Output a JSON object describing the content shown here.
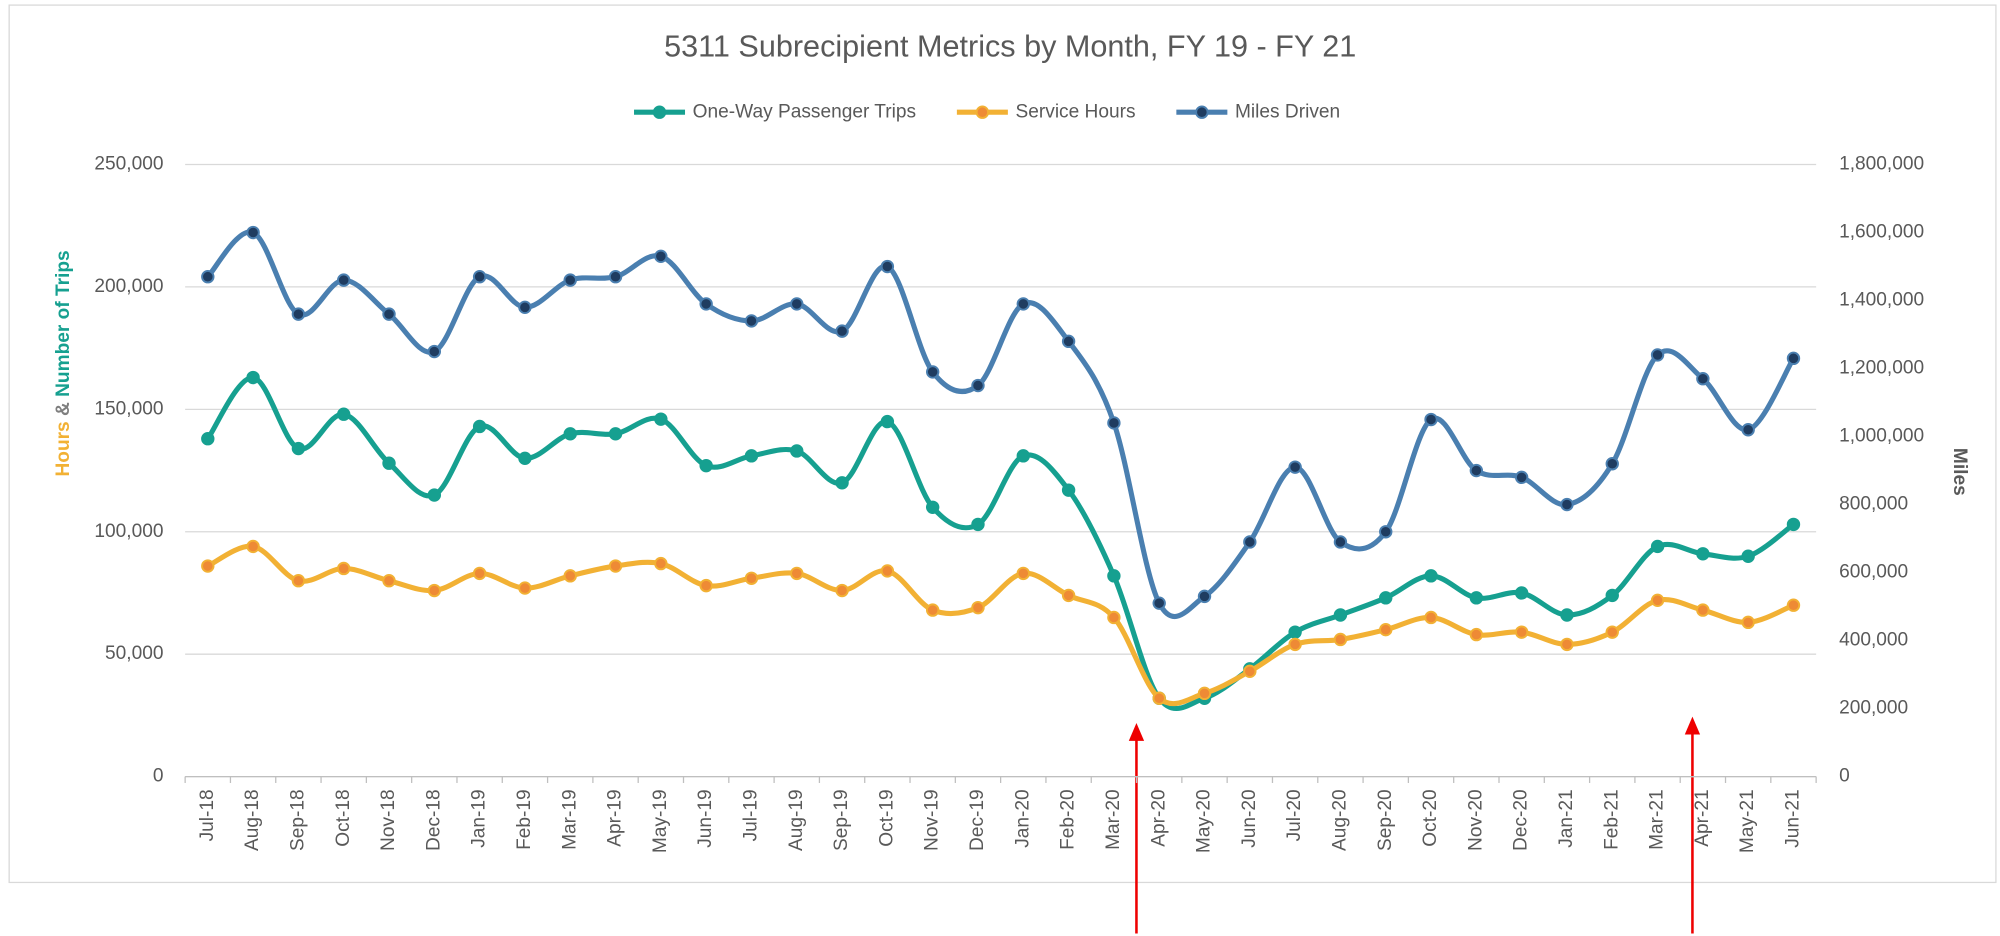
{
  "chart_data": {
    "type": "line",
    "title": "5311 Subrecipient Metrics by Month, FY 19 - FY 21",
    "ylabel_parts": [
      {
        "text": "Hours",
        "color": "#f2b134"
      },
      {
        "text": "&",
        "color": "#7f7f7f"
      },
      {
        "text": "Number of Trips",
        "color": "#16a090"
      }
    ],
    "y2label": "Miles",
    "y2label_color": "#2e6aa8",
    "categories": [
      "Jul-18",
      "Aug-18",
      "Sep-18",
      "Oct-18",
      "Nov-18",
      "Dec-18",
      "Jan-19",
      "Feb-19",
      "Mar-19",
      "Apr-19",
      "May-19",
      "Jun-19",
      "Jul-19",
      "Aug-19",
      "Sep-19",
      "Oct-19",
      "Nov-19",
      "Dec-19",
      "Jan-20",
      "Feb-20",
      "Mar-20",
      "Apr-20",
      "May-20",
      "Jun-20",
      "Jul-20",
      "Aug-20",
      "Sep-20",
      "Oct-20",
      "Nov-20",
      "Dec-20",
      "Jan-21",
      "Feb-21",
      "Mar-21",
      "Apr-21",
      "May-21",
      "Jun-21"
    ],
    "series": [
      {
        "name": "One-Way Passenger Trips",
        "color": "#16a090",
        "marker_color": "#16a090",
        "values": [
          138000,
          163000,
          134000,
          148000,
          128000,
          115000,
          143000,
          130000,
          140000,
          140000,
          146000,
          127000,
          131000,
          133000,
          120000,
          145000,
          110000,
          103000,
          131000,
          117000,
          82000,
          32000,
          32000,
          44000,
          59000,
          66000,
          73000,
          82000,
          73000,
          75000,
          66000,
          74000,
          94000,
          91000,
          90000,
          103000
        ]
      },
      {
        "name": "Service Hours",
        "color": "#f2b134",
        "marker_color": "#ee8a35",
        "values": [
          86000,
          94000,
          80000,
          85000,
          80000,
          76000,
          83000,
          77000,
          82000,
          86000,
          87000,
          78000,
          81000,
          83000,
          76000,
          84000,
          68000,
          69000,
          83000,
          74000,
          65000,
          32000,
          34000,
          43000,
          54000,
          56000,
          60000,
          65000,
          58000,
          59000,
          54000,
          59000,
          72000,
          68000,
          63000,
          70000
        ]
      },
      {
        "name": "Miles Driven",
        "color": "#4a7fb0",
        "marker_color": "#1f3c60",
        "axis": "y2",
        "values": [
          1470000,
          1600000,
          1360000,
          1460000,
          1360000,
          1250000,
          1470000,
          1380000,
          1460000,
          1470000,
          1530000,
          1390000,
          1340000,
          1390000,
          1310000,
          1500000,
          1190000,
          1150000,
          1390000,
          1280000,
          1040000,
          510000,
          530000,
          690000,
          910000,
          690000,
          720000,
          1050000,
          900000,
          880000,
          800000,
          920000,
          1240000,
          1170000,
          1020000,
          1230000
        ]
      }
    ],
    "ylim": [
      0,
      250000
    ],
    "yticks": [
      0,
      {
        "value": 50000,
        "label": "50,000"
      },
      {
        "value": 100000,
        "label": "100,000"
      },
      {
        "value": 150000,
        "label": "150,000"
      },
      {
        "value": 200000,
        "label": "200,000"
      },
      {
        "value": 250000,
        "label": "250,000"
      }
    ],
    "y2lim": [
      0,
      1800000
    ],
    "y2ticks": [
      0,
      {
        "value": 200000,
        "label": "200,000"
      },
      {
        "value": 400000,
        "label": "400,000"
      },
      {
        "value": 600000,
        "label": "600,000"
      },
      {
        "value": 800000,
        "label": "800,000"
      },
      {
        "value": 1000000,
        "label": "1,000,000"
      },
      {
        "value": 1200000,
        "label": "1,200,000"
      },
      {
        "value": 1400000,
        "label": "1,400,000"
      },
      {
        "value": 1600000,
        "label": "1,600,000"
      },
      {
        "value": 1800000,
        "label": "1,800,000"
      }
    ],
    "grid": true,
    "smooth": true,
    "legend": "top"
  }
}
